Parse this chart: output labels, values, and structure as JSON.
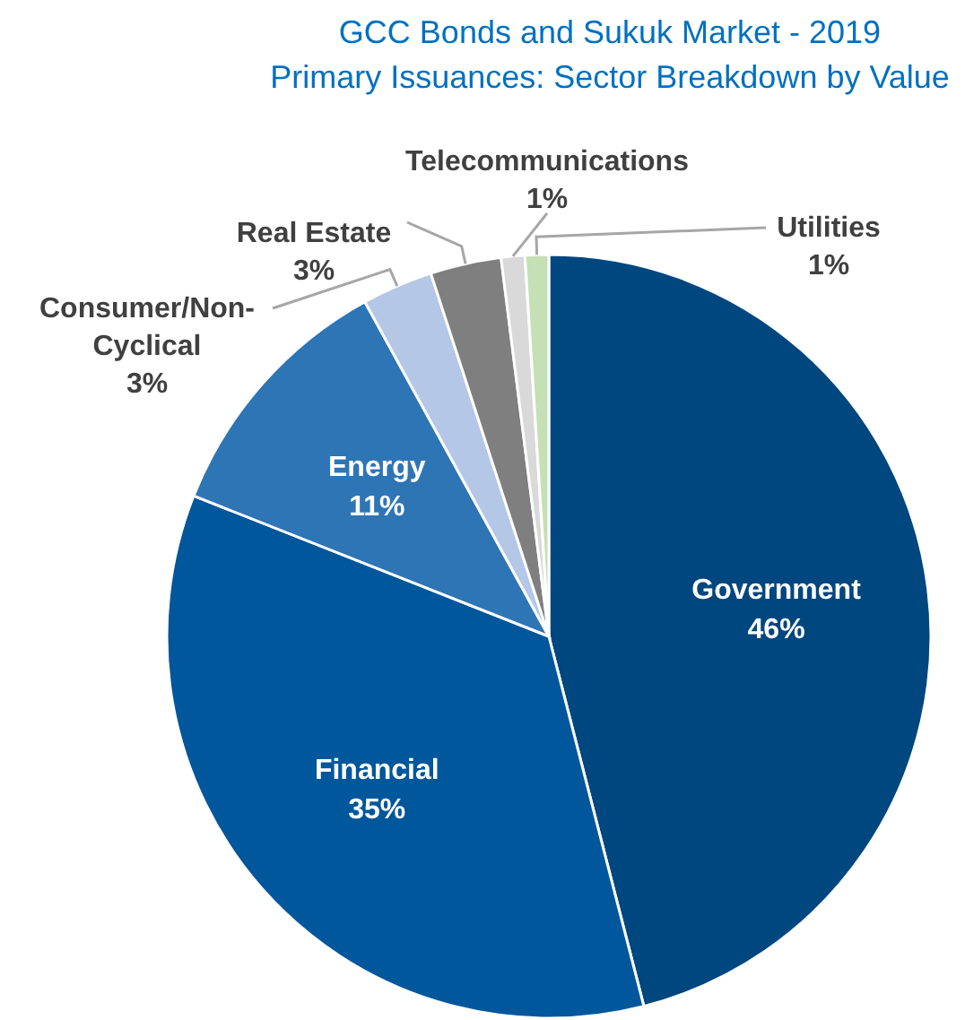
{
  "chart_data": {
    "type": "pie",
    "title": "GCC Bonds and Sukuk Market - 2019",
    "subtitle": "Primary Issuances: Sector Breakdown by Value",
    "categories": [
      "Government",
      "Financial",
      "Energy",
      "Consumer/Non-Cyclical",
      "Real Estate",
      "Telecommunications",
      "Utilities"
    ],
    "values": [
      46,
      35,
      11,
      3,
      3,
      1,
      1
    ],
    "colors": [
      "#00467f",
      "#00579b",
      "#2e75b6",
      "#b4c7e7",
      "#7f7f7f",
      "#d9d9d9",
      "#c5e0b4"
    ],
    "value_labels": [
      "46%",
      "35%",
      "11%",
      "3%",
      "3%",
      "1%",
      "1%"
    ]
  }
}
